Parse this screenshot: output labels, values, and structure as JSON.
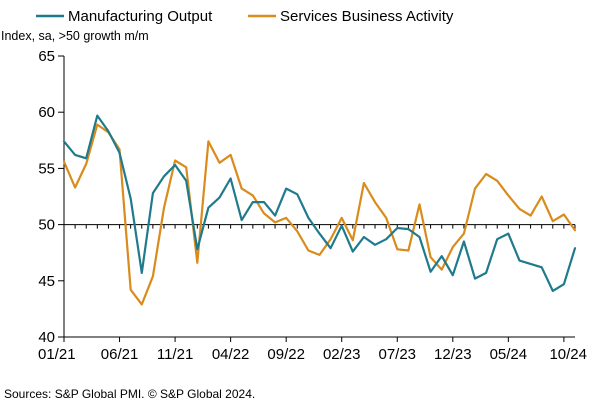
{
  "chart_data": {
    "type": "line",
    "units_label": "Index, sa, >50 growth m/m",
    "source": "Sources: S&P Global PMI. © S&P Global 2024.",
    "ylim": [
      40,
      65
    ],
    "yticks": [
      40,
      45,
      50,
      55,
      60,
      65
    ],
    "reference_line": 50,
    "x_tick_labels": [
      {
        "label": "01/21",
        "index": 0
      },
      {
        "label": "06/21",
        "index": 5
      },
      {
        "label": "11/21",
        "index": 10
      },
      {
        "label": "04/22",
        "index": 15
      },
      {
        "label": "09/22",
        "index": 20
      },
      {
        "label": "02/23",
        "index": 25
      },
      {
        "label": "07/23",
        "index": 30
      },
      {
        "label": "12/23",
        "index": 35
      },
      {
        "label": "05/24",
        "index": 40
      },
      {
        "label": "10/24",
        "index": 45
      }
    ],
    "series": [
      {
        "name": "Manufacturing Output",
        "color": "#1f7b8c",
        "values": [
          57.4,
          56.2,
          55.9,
          59.7,
          58.3,
          56.4,
          52.3,
          45.7,
          52.8,
          54.3,
          55.3,
          53.9,
          47.8,
          51.5,
          52.4,
          54.1,
          50.4,
          52.0,
          52.0,
          50.8,
          53.2,
          52.7,
          50.6,
          49.2,
          47.9,
          49.9,
          47.6,
          48.9,
          48.2,
          48.7,
          49.7,
          49.6,
          48.9,
          45.8,
          47.2,
          45.5,
          48.5,
          45.2,
          45.7,
          48.7,
          49.2,
          46.8,
          46.5,
          46.2,
          44.1,
          44.7,
          47.9
        ]
      },
      {
        "name": "Services Business Activity",
        "color": "#d98b1c",
        "values": [
          55.6,
          53.3,
          55.4,
          58.9,
          58.2,
          56.7,
          44.2,
          42.9,
          45.4,
          51.5,
          55.7,
          55.1,
          46.6,
          57.4,
          55.5,
          56.2,
          53.2,
          52.6,
          51.0,
          50.2,
          50.6,
          49.4,
          47.7,
          47.3,
          48.7,
          50.6,
          48.6,
          53.7,
          52.0,
          50.6,
          47.8,
          47.7,
          51.8,
          47.1,
          46.0,
          48.0,
          49.2,
          53.2,
          54.5,
          53.9,
          52.6,
          51.4,
          50.8,
          52.5,
          50.3,
          50.9,
          49.5
        ]
      }
    ]
  }
}
